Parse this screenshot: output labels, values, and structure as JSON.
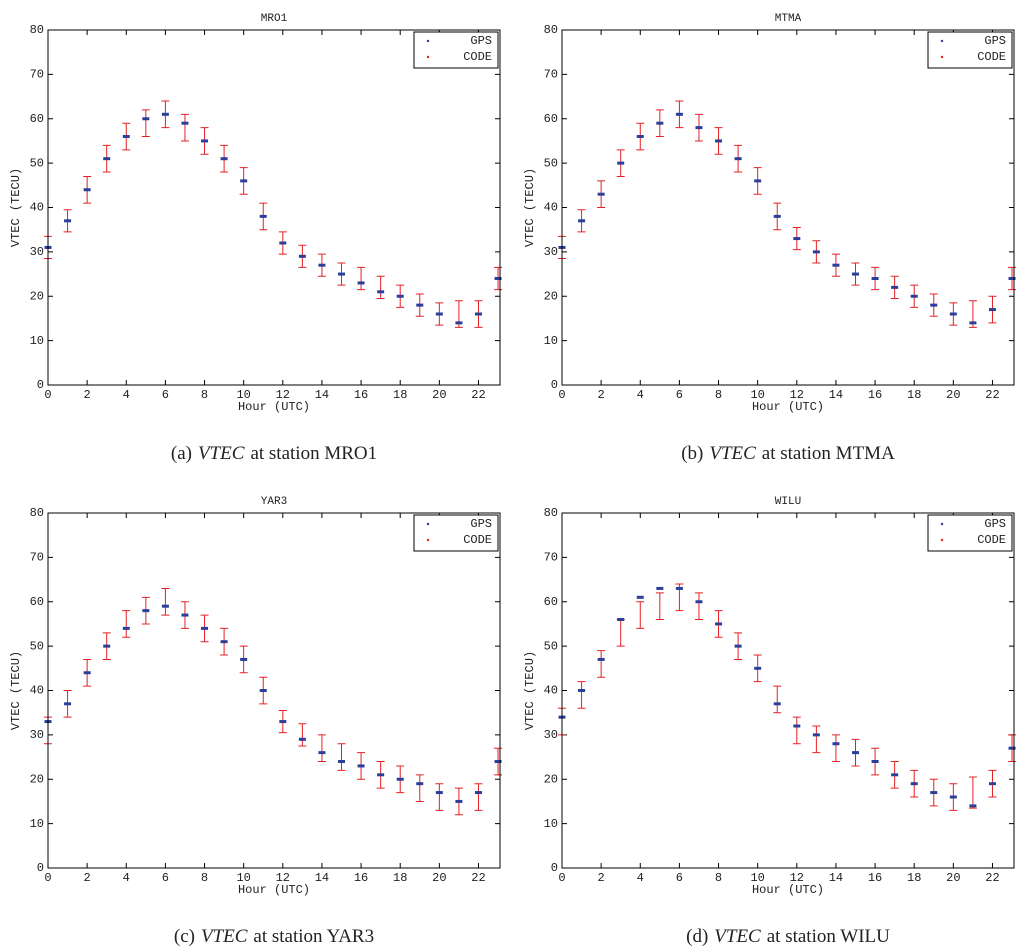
{
  "chart_data": [
    {
      "type": "scatter",
      "title": "MRO1",
      "xlabel": "Hour (UTC)",
      "ylabel": "VTEC (TECU)",
      "caption": {
        "label": "(a)",
        "symbol": "VTEC",
        "text": "at station MRO1"
      },
      "x": [
        0,
        1,
        2,
        3,
        4,
        5,
        6,
        7,
        8,
        9,
        10,
        11,
        12,
        13,
        14,
        15,
        16,
        17,
        18,
        19,
        20,
        21,
        22,
        23
      ],
      "xlim": [
        0,
        23.1
      ],
      "ylim": [
        0,
        80
      ],
      "xticks": [
        0,
        2,
        4,
        6,
        8,
        10,
        12,
        14,
        16,
        18,
        20,
        22
      ],
      "yticks": [
        0,
        10,
        20,
        30,
        40,
        50,
        60,
        70,
        80
      ],
      "legend": "upper right",
      "series": [
        {
          "name": "GPS",
          "color": "#2b3f99",
          "values": [
            31,
            37,
            44,
            51,
            56,
            60,
            61,
            59,
            55,
            51,
            46,
            38,
            32,
            29,
            27,
            25,
            23,
            21,
            20,
            18,
            16,
            14,
            16,
            24
          ]
        },
        {
          "name": "CODE",
          "color": "#e42025",
          "values": [
            31,
            37,
            44,
            51,
            56,
            59,
            61,
            58,
            55,
            51,
            46,
            38,
            32,
            29,
            27,
            25,
            24,
            22,
            20,
            18,
            16,
            16,
            16,
            24
          ],
          "errors": [
            2.5,
            2.5,
            3,
            3,
            3,
            3,
            3,
            3,
            3,
            3,
            3,
            3,
            2.5,
            2.5,
            2.5,
            2.5,
            2.5,
            2.5,
            2.5,
            2.5,
            2.5,
            3,
            3,
            2.5
          ]
        }
      ]
    },
    {
      "type": "scatter",
      "title": "MTMA",
      "xlabel": "Hour (UTC)",
      "ylabel": "VTEC (TECU)",
      "caption": {
        "label": "(b)",
        "symbol": "VTEC",
        "text": "at station MTMA"
      },
      "x": [
        0,
        1,
        2,
        3,
        4,
        5,
        6,
        7,
        8,
        9,
        10,
        11,
        12,
        13,
        14,
        15,
        16,
        17,
        18,
        19,
        20,
        21,
        22,
        23
      ],
      "xlim": [
        0,
        23.1
      ],
      "ylim": [
        0,
        80
      ],
      "xticks": [
        0,
        2,
        4,
        6,
        8,
        10,
        12,
        14,
        16,
        18,
        20,
        22
      ],
      "yticks": [
        0,
        10,
        20,
        30,
        40,
        50,
        60,
        70,
        80
      ],
      "legend": "upper right",
      "series": [
        {
          "name": "GPS",
          "color": "#2b3f99",
          "values": [
            31,
            37,
            43,
            50,
            56,
            59,
            61,
            58,
            55,
            51,
            46,
            38,
            33,
            30,
            27,
            25,
            24,
            22,
            20,
            18,
            16,
            14,
            17,
            24
          ]
        },
        {
          "name": "CODE",
          "color": "#e42025",
          "values": [
            31,
            37,
            43,
            50,
            56,
            59,
            61,
            58,
            55,
            51,
            46,
            38,
            33,
            30,
            27,
            25,
            24,
            22,
            20,
            18,
            16,
            16,
            17,
            24
          ],
          "errors": [
            2.5,
            2.5,
            3,
            3,
            3,
            3,
            3,
            3,
            3,
            3,
            3,
            3,
            2.5,
            2.5,
            2.5,
            2.5,
            2.5,
            2.5,
            2.5,
            2.5,
            2.5,
            3,
            3,
            2.5
          ]
        }
      ]
    },
    {
      "type": "scatter",
      "title": "YAR3",
      "xlabel": "Hour (UTC)",
      "ylabel": "VTEC (TECU)",
      "caption": {
        "label": "(c)",
        "symbol": "VTEC",
        "text": "at station YAR3"
      },
      "x": [
        0,
        1,
        2,
        3,
        4,
        5,
        6,
        7,
        8,
        9,
        10,
        11,
        12,
        13,
        14,
        15,
        16,
        17,
        18,
        19,
        20,
        21,
        22,
        23
      ],
      "xlim": [
        0,
        23.1
      ],
      "ylim": [
        0,
        80
      ],
      "xticks": [
        0,
        2,
        4,
        6,
        8,
        10,
        12,
        14,
        16,
        18,
        20,
        22
      ],
      "yticks": [
        0,
        10,
        20,
        30,
        40,
        50,
        60,
        70,
        80
      ],
      "legend": "upper right",
      "series": [
        {
          "name": "GPS",
          "color": "#2b3f99",
          "values": [
            33,
            37,
            44,
            50,
            54,
            58,
            59,
            57,
            54,
            51,
            47,
            40,
            33,
            29,
            26,
            24,
            23,
            21,
            20,
            19,
            17,
            15,
            17,
            24
          ]
        },
        {
          "name": "CODE",
          "color": "#e42025",
          "values": [
            31,
            37,
            44,
            50,
            55,
            58,
            60,
            57,
            54,
            51,
            47,
            40,
            33,
            30,
            27,
            25,
            23,
            21,
            20,
            18,
            16,
            15,
            16,
            24
          ],
          "errors": [
            3,
            3,
            3,
            3,
            3,
            3,
            3,
            3,
            3,
            3,
            3,
            3,
            2.5,
            2.5,
            3,
            3,
            3,
            3,
            3,
            3,
            3,
            3,
            3,
            3
          ]
        }
      ]
    },
    {
      "type": "scatter",
      "title": "WILU",
      "xlabel": "Hour (UTC)",
      "ylabel": "VTEC (TECU)",
      "caption": {
        "label": "(d)",
        "symbol": "VTEC",
        "text": "at station WILU"
      },
      "x": [
        0,
        1,
        2,
        3,
        4,
        5,
        6,
        7,
        8,
        9,
        10,
        11,
        12,
        13,
        14,
        15,
        16,
        17,
        18,
        19,
        20,
        21,
        22,
        23
      ],
      "xlim": [
        0,
        23.1
      ],
      "ylim": [
        0,
        80
      ],
      "xticks": [
        0,
        2,
        4,
        6,
        8,
        10,
        12,
        14,
        16,
        18,
        20,
        22
      ],
      "yticks": [
        0,
        10,
        20,
        30,
        40,
        50,
        60,
        70,
        80
      ],
      "legend": "upper right",
      "series": [
        {
          "name": "GPS",
          "color": "#2b3f99",
          "values": [
            34,
            40,
            47,
            56,
            61,
            63,
            63,
            60,
            55,
            50,
            45,
            37,
            32,
            30,
            28,
            26,
            24,
            21,
            19,
            17,
            16,
            14,
            19,
            27
          ]
        },
        {
          "name": "CODE",
          "color": "#e42025",
          "values": [
            33,
            39,
            46,
            53,
            57,
            59,
            61,
            59,
            55,
            50,
            45,
            38,
            31,
            29,
            27,
            26,
            24,
            21,
            19,
            17,
            16,
            17,
            19,
            27
          ],
          "errors": [
            3,
            3,
            3,
            3,
            3,
            3,
            3,
            3,
            3,
            3,
            3,
            3,
            3,
            3,
            3,
            3,
            3,
            3,
            3,
            3,
            3,
            3.5,
            3,
            3
          ]
        }
      ]
    }
  ]
}
